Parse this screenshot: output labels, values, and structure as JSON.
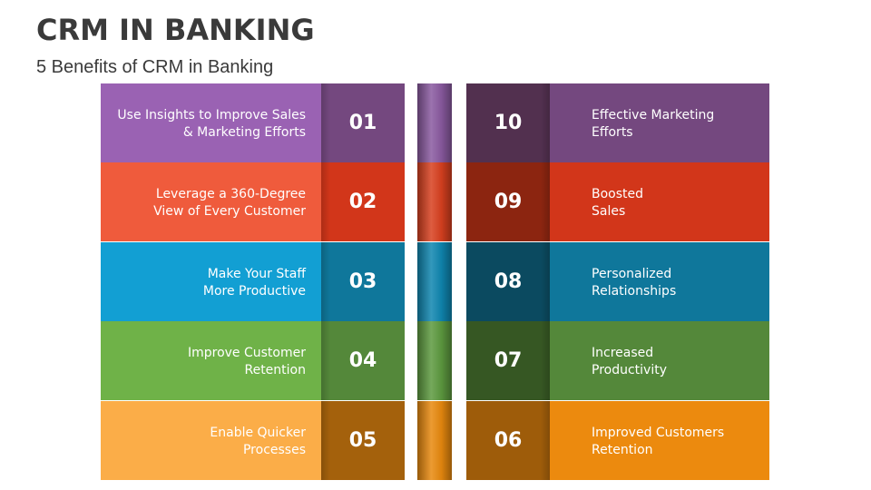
{
  "header": {
    "title": "CRM IN BANKING",
    "subtitle": "5 Benefits of CRM in Banking"
  },
  "left_items": [
    {
      "number": "01",
      "line1": "Use Insights to Improve Sales",
      "line2": "& Marketing Efforts",
      "color": "#9a62b3",
      "dark": "#74487f",
      "spine": "#8a5aa0"
    },
    {
      "number": "02",
      "line1": "Leverage a 360-Degree",
      "line2": "View of Every Customer",
      "color": "#ef5b3c",
      "dark": "#d2361a",
      "spine": "#d8401f"
    },
    {
      "number": "03",
      "line1": "Make Your Staff",
      "line2": "More Productive",
      "color": "#129fd3",
      "dark": "#0f779b",
      "spine": "#0f86b0"
    },
    {
      "number": "04",
      "line1": "Improve Customer",
      "line2": "Retention",
      "color": "#6fb248",
      "dark": "#54883a",
      "spine": "#5d9a3f"
    },
    {
      "number": "05",
      "line1": "Enable Quicker",
      "line2": "Processes",
      "color": "#fbad48",
      "dark": "#a4610c",
      "spine": "#e8890e"
    }
  ],
  "right_items": [
    {
      "number": "10",
      "line1": "Effective Marketing",
      "line2": "Efforts",
      "color": "#74487f",
      "dark": "#52304f"
    },
    {
      "number": "09",
      "line1": "Boosted",
      "line2": "Sales",
      "color": "#d2361a",
      "dark": "#8c2510"
    },
    {
      "number": "08",
      "line1": "Personalized",
      "line2": "Relationships",
      "color": "#0f779b",
      "dark": "#0b4a60"
    },
    {
      "number": "07",
      "line1": "Increased",
      "line2": "Productivity",
      "color": "#54883a",
      "dark": "#365723"
    },
    {
      "number": "06",
      "line1": "Improved Customers",
      "line2": "Retention",
      "color": "#ec8a0e",
      "dark": "#9e5c0a"
    }
  ]
}
